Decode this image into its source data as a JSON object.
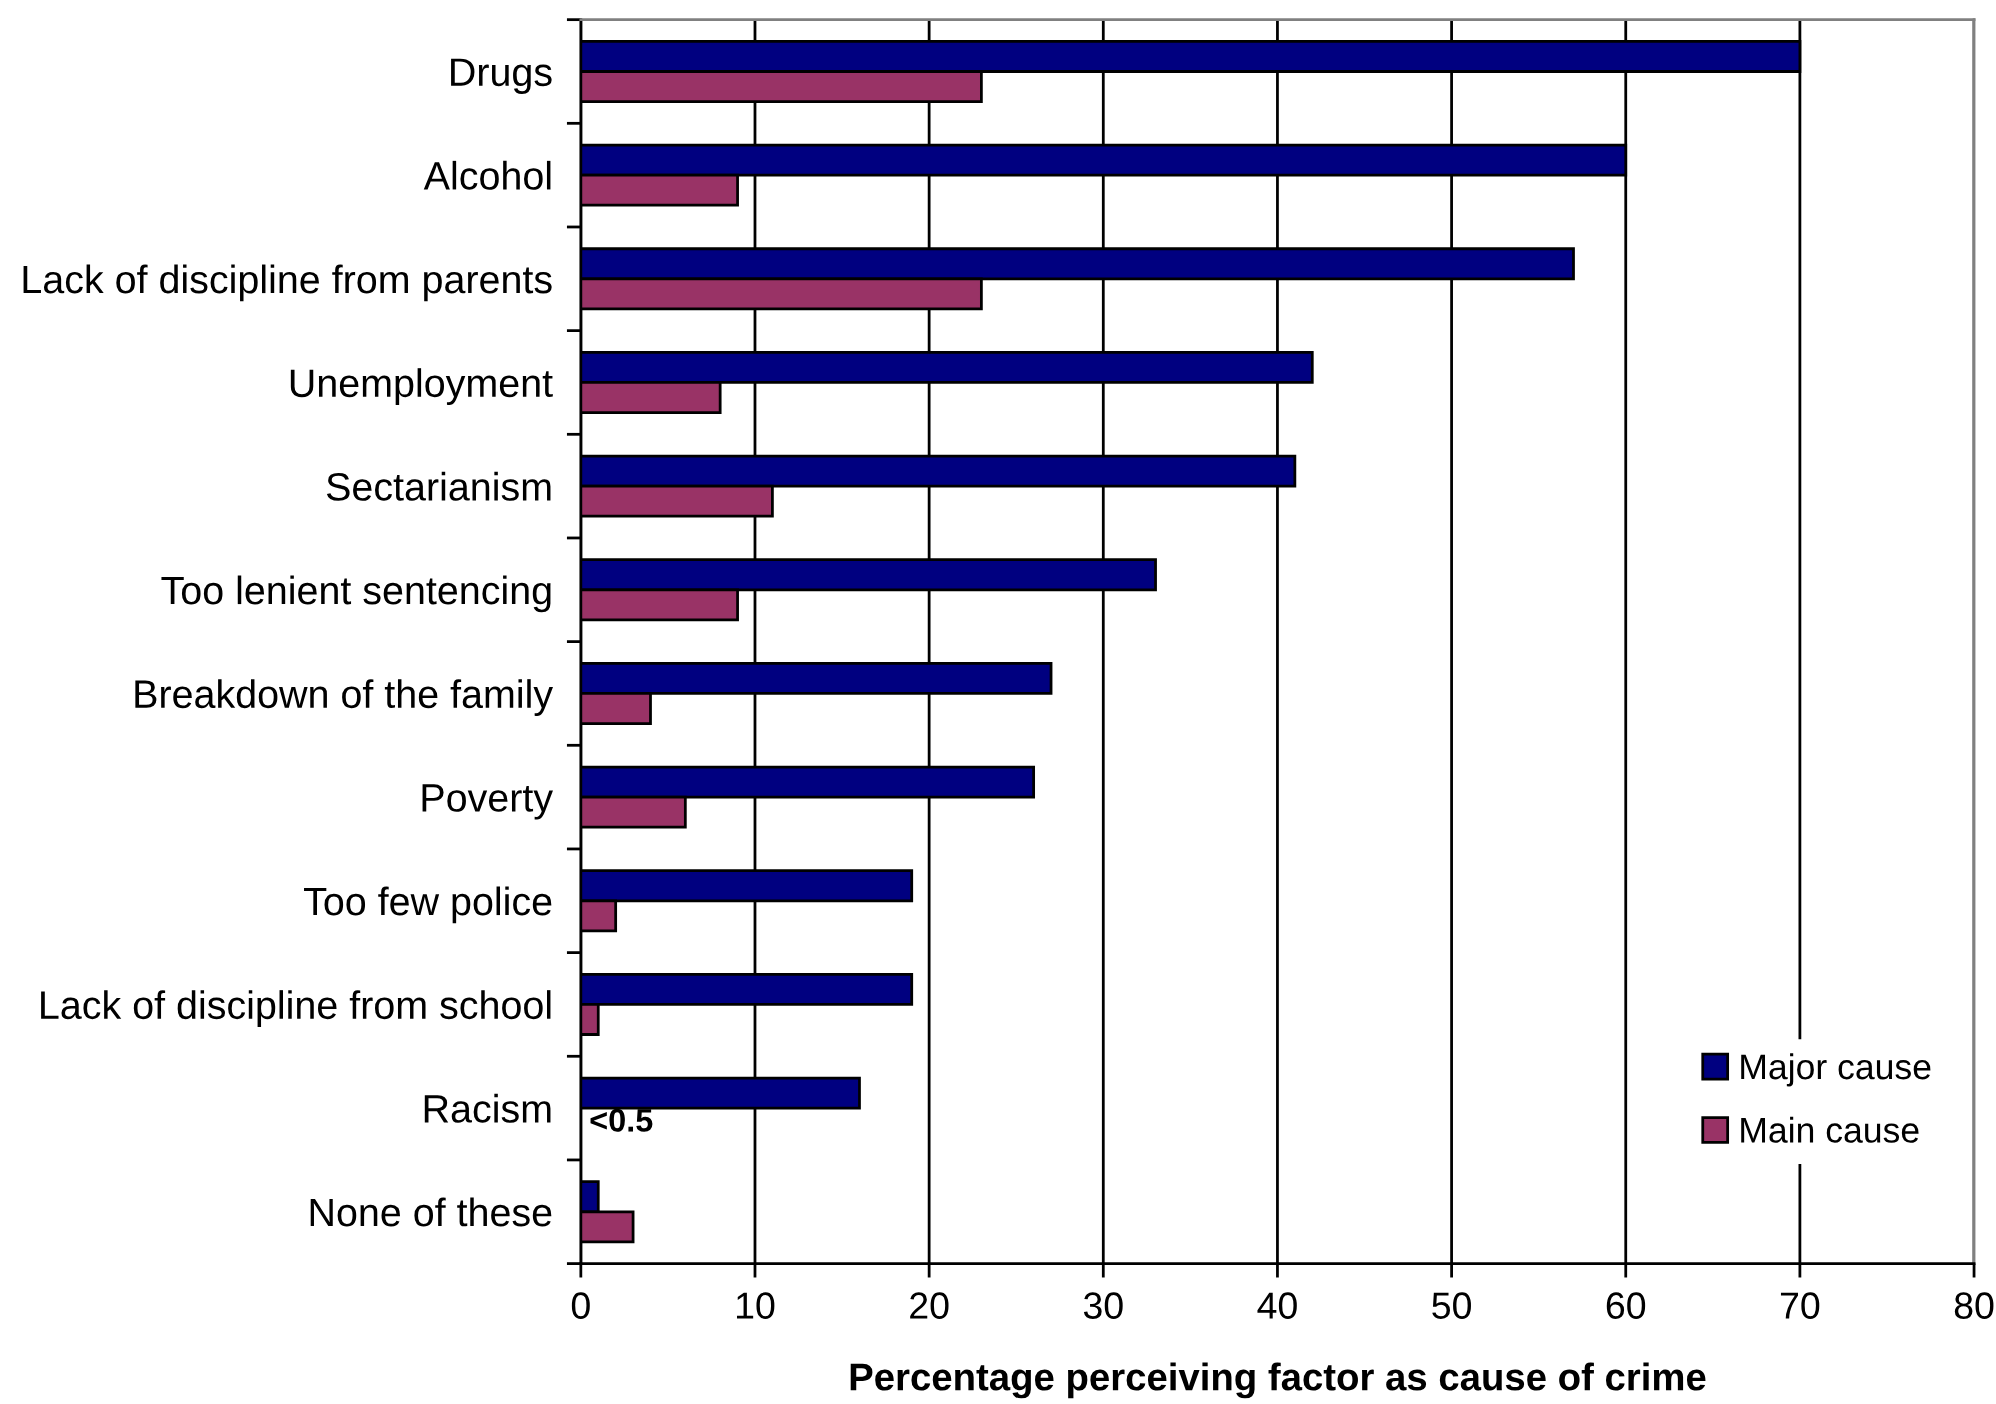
{
  "chart_data": {
    "type": "bar",
    "orientation": "horizontal",
    "xlabel": "Percentage perceiving factor as cause of crime",
    "categories": [
      "Drugs",
      "Alcohol",
      "Lack of discipline from parents",
      "Unemployment",
      "Sectarianism",
      "Too lenient sentencing",
      "Breakdown of the family",
      "Poverty",
      "Too few police",
      "Lack of discipline from school",
      "Racism",
      "None of these"
    ],
    "series": [
      {
        "name": "Major cause",
        "color": "#000080",
        "values": [
          70,
          60,
          57,
          42,
          41,
          33,
          27,
          26,
          19,
          19,
          16,
          1
        ]
      },
      {
        "name": "Main cause",
        "color": "#993366",
        "values": [
          23,
          9,
          23,
          8,
          11,
          9,
          4,
          6,
          2,
          1,
          0,
          3
        ],
        "value_labels": [
          null,
          null,
          null,
          null,
          null,
          null,
          null,
          null,
          null,
          null,
          "<0.5",
          null
        ]
      }
    ],
    "xlim": [
      0,
      80
    ],
    "xticks": [
      0,
      10,
      20,
      30,
      40,
      50,
      60,
      70,
      80
    ],
    "grid": "x",
    "legend": "bottom right"
  }
}
